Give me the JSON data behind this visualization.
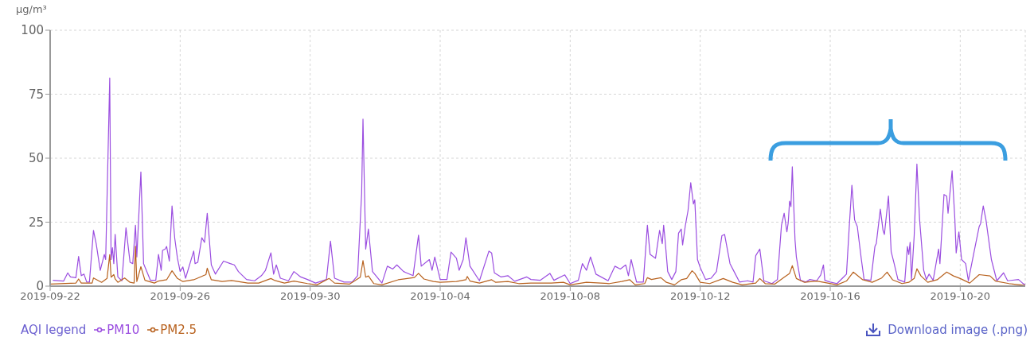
{
  "chart_data": {
    "type": "line",
    "ylabel": "µg/m³",
    "legend_title": "AQI legend",
    "legend": "bottom left",
    "grid": true,
    "line_style": "solid",
    "xlim": [
      "2019-09-22",
      "2019-10-22"
    ],
    "xticks": [
      "2019-09-22",
      "2019-09-26",
      "2019-09-30",
      "2019-10-04",
      "2019-10-08",
      "2019-10-12",
      "2019-10-16",
      "2019-10-20"
    ],
    "ylim": [
      0,
      100
    ],
    "yticks": [
      0,
      25,
      50,
      75,
      100
    ],
    "annotations": [
      "Download image (.png)"
    ],
    "series": [
      {
        "name": "PM10",
        "color": "#9b4ee0",
        "x": [
          "2019-09-22T02:00",
          "2019-09-22T10:00",
          "2019-09-22T13:00",
          "2019-09-22T15:00",
          "2019-09-22T19:00",
          "2019-09-22T21:00",
          "2019-09-22T23:00",
          "2019-09-23T01:00",
          "2019-09-23T03:00",
          "2019-09-23T05:00",
          "2019-09-23T08:00",
          "2019-09-23T10:00",
          "2019-09-23T13:00",
          "2019-09-23T16:00",
          "2019-09-23T17:00",
          "2019-09-23T20:00",
          "2019-09-23T21:00",
          "2019-09-23T22:00",
          "2019-09-23T23:00",
          "2019-09-24T00:00",
          "2019-09-24T02:00",
          "2019-09-24T05:00",
          "2019-09-24T08:00",
          "2019-09-24T11:00",
          "2019-09-24T13:00",
          "2019-09-24T15:00",
          "2019-09-24T16:00",
          "2019-09-24T19:00",
          "2019-09-24T21:00",
          "2019-09-25T02:00",
          "2019-09-25T06:00",
          "2019-09-25T08:00",
          "2019-09-25T10:00",
          "2019-09-25T11:00",
          "2019-09-25T13:00",
          "2019-09-25T14:00",
          "2019-09-25T16:00",
          "2019-09-25T18:00",
          "2019-09-25T20:00",
          "2019-09-25T22:00",
          "2019-09-26T00:00",
          "2019-09-26T02:00",
          "2019-09-26T04:00",
          "2019-09-26T10:00",
          "2019-09-26T11:00",
          "2019-09-26T13:00",
          "2019-09-26T16:00",
          "2019-09-26T18:00",
          "2019-09-26T20:00",
          "2019-09-26T23:00",
          "2019-09-27T02:00",
          "2019-09-27T08:00",
          "2019-09-27T13:00",
          "2019-09-27T16:00",
          "2019-09-27T19:00",
          "2019-09-28T01:00",
          "2019-09-28T07:00",
          "2019-09-28T12:00",
          "2019-09-28T15:00",
          "2019-09-28T19:00",
          "2019-09-28T21:00",
          "2019-09-28T23:00",
          "2019-09-29T02:00",
          "2019-09-29T08:00",
          "2019-09-29T12:00",
          "2019-09-29T17:00",
          "2019-09-29T22:00",
          "2019-09-30T04:00",
          "2019-09-30T12:00",
          "2019-09-30T15:00",
          "2019-09-30T18:00",
          "2019-10-01T01:00",
          "2019-10-01T07:00",
          "2019-10-01T11:00",
          "2019-10-01T14:00",
          "2019-10-01T15:00",
          "2019-10-01T17:00",
          "2019-10-01T19:00",
          "2019-10-01T22:00",
          "2019-10-02T05:00",
          "2019-10-02T09:00",
          "2019-10-02T13:00",
          "2019-10-02T16:00",
          "2019-10-02T21:00",
          "2019-10-03T04:00",
          "2019-10-03T08:00",
          "2019-10-03T10:00",
          "2019-10-03T16:00",
          "2019-10-03T18:00",
          "2019-10-03T20:00",
          "2019-10-04T00:00",
          "2019-10-04T05:00",
          "2019-10-04T08:00",
          "2019-10-04T12:00",
          "2019-10-04T14:00",
          "2019-10-04T17:00",
          "2019-10-04T19:00",
          "2019-10-04T22:00",
          "2019-10-05T05:00",
          "2019-10-05T12:00",
          "2019-10-05T14:00",
          "2019-10-05T16:00",
          "2019-10-05T21:00",
          "2019-10-06T02:00",
          "2019-10-06T07:00",
          "2019-10-06T16:00",
          "2019-10-06T19:00",
          "2019-10-07T02:00",
          "2019-10-07T09:00",
          "2019-10-07T12:00",
          "2019-10-07T20:00",
          "2019-10-08T00:00",
          "2019-10-08T06:00",
          "2019-10-08T09:00",
          "2019-10-08T12:00",
          "2019-10-08T15:00",
          "2019-10-08T19:00",
          "2019-10-09T04:00",
          "2019-10-09T09:00",
          "2019-10-09T13:00",
          "2019-10-09T17:00",
          "2019-10-09T19:00",
          "2019-10-09T21:00",
          "2019-10-10T01:00",
          "2019-10-10T06:00",
          "2019-10-10T09:00",
          "2019-10-10T11:00",
          "2019-10-10T15:00",
          "2019-10-10T18:00",
          "2019-10-10T20:00",
          "2019-10-10T21:00",
          "2019-10-10T22:00",
          "2019-10-11T00:00",
          "2019-10-11T03:00",
          "2019-10-11T06:00",
          "2019-10-11T08:00",
          "2019-10-11T10:00",
          "2019-10-11T11:00",
          "2019-10-11T13:00",
          "2019-10-11T15:00",
          "2019-10-11T17:00",
          "2019-10-11T19:00",
          "2019-10-11T20:00",
          "2019-10-11T22:00",
          "2019-10-12T00:00",
          "2019-10-12T04:00",
          "2019-10-12T08:00",
          "2019-10-12T12:00",
          "2019-10-12T16:00",
          "2019-10-12T18:00",
          "2019-10-12T22:00",
          "2019-10-13T01:00",
          "2019-10-13T05:00",
          "2019-10-13T11:00",
          "2019-10-13T15:00",
          "2019-10-13T17:00",
          "2019-10-13T20:00",
          "2019-10-13T23:00",
          "2019-10-14T05:00",
          "2019-10-14T09:00",
          "2019-10-14T12:00",
          "2019-10-14T14:00",
          "2019-10-14T16:00",
          "2019-10-14T17:00",
          "2019-10-14T18:00",
          "2019-10-14T19:00",
          "2019-10-14T20:00",
          "2019-10-14T22:00",
          "2019-10-14T23:00",
          "2019-10-15T02:00",
          "2019-10-15T06:00",
          "2019-10-15T09:00",
          "2019-10-15T14:00",
          "2019-10-15T17:00",
          "2019-10-15T19:00",
          "2019-10-15T20:00",
          "2019-10-16T00:00",
          "2019-10-16T05:00",
          "2019-10-16T09:00",
          "2019-10-16T12:00",
          "2019-10-16T14:00",
          "2019-10-16T16:00",
          "2019-10-16T18:00",
          "2019-10-16T20:00",
          "2019-10-16T23:00",
          "2019-10-17T01:00",
          "2019-10-17T06:00",
          "2019-10-17T09:00",
          "2019-10-17T10:00",
          "2019-10-17T13:00",
          "2019-10-17T15:00",
          "2019-10-17T16:00",
          "2019-10-17T19:00",
          "2019-10-17T21:00",
          "2019-10-17T23:00",
          "2019-10-18T02:00",
          "2019-10-18T07:00",
          "2019-10-18T09:00",
          "2019-10-18T10:00",
          "2019-10-18T11:00",
          "2019-10-18T12:00",
          "2019-10-18T14:00",
          "2019-10-18T16:00",
          "2019-10-18T18:00",
          "2019-10-18T21:00",
          "2019-10-18T23:00",
          "2019-10-19T01:00",
          "2019-10-19T04:00",
          "2019-10-19T08:00",
          "2019-10-19T09:00",
          "2019-10-19T12:00",
          "2019-10-19T14:00",
          "2019-10-19T15:00",
          "2019-10-19T18:00",
          "2019-10-19T20:00",
          "2019-10-19T21:00",
          "2019-10-19T23:00",
          "2019-10-20T01:00",
          "2019-10-20T04:00",
          "2019-10-20T06:00",
          "2019-10-20T11:00",
          "2019-10-20T14:00",
          "2019-10-20T15:00",
          "2019-10-20T17:00",
          "2019-10-20T19:00",
          "2019-10-20T23:00",
          "2019-10-21T03:00",
          "2019-10-21T08:00",
          "2019-10-21T11:00",
          "2019-10-21T19:00",
          "2019-10-21T22:00",
          "2019-10-22T00:00"
        ],
        "values": [
          2.3,
          2,
          5.2,
          3.6,
          3.3,
          11.6,
          4.1,
          4.7,
          1.6,
          1.6,
          21.8,
          16.6,
          6.2,
          12.4,
          10.4,
          81.3,
          10.4,
          15,
          8.8,
          20.2,
          3.6,
          2.1,
          22.8,
          9.3,
          8.8,
          23.8,
          11.4,
          44.6,
          8.8,
          2.3,
          2.3,
          12.4,
          6.2,
          14,
          14.5,
          15.5,
          9.8,
          31.3,
          18.7,
          10.9,
          5.7,
          7.5,
          3.1,
          13.7,
          8.8,
          9.3,
          18.9,
          17.1,
          28.5,
          8.3,
          4.7,
          9.8,
          8.8,
          8.3,
          5.7,
          2.6,
          2.1,
          4.1,
          6.2,
          13,
          4.7,
          8.3,
          3.1,
          2.1,
          5.7,
          3.6,
          2.6,
          1.2,
          2.6,
          17.6,
          3.1,
          1.6,
          1.6,
          4.1,
          36.3,
          65.3,
          14.5,
          22.3,
          5.7,
          1.2,
          7.8,
          6.7,
          8.3,
          5.7,
          4.1,
          19.9,
          7.8,
          10.4,
          6.2,
          11.4,
          2.6,
          2.6,
          13.3,
          10.9,
          6.2,
          10.4,
          18.9,
          7.8,
          2.1,
          13.7,
          13,
          5.2,
          3.6,
          4.1,
          1.9,
          3.6,
          2.6,
          2.3,
          5,
          2.3,
          4.4,
          1,
          2.3,
          8.8,
          6.2,
          11.4,
          4.7,
          2.1,
          7.8,
          6.7,
          8.3,
          4.1,
          10.4,
          1.6,
          1.6,
          23.8,
          12.4,
          10.9,
          21.8,
          16.6,
          23.8,
          18.4,
          5.7,
          2.6,
          5.7,
          20.7,
          22.3,
          16.1,
          23.6,
          29.5,
          40.4,
          32.1,
          33.7,
          10.4,
          7.3,
          2.6,
          3.1,
          5.7,
          19.7,
          20.2,
          8.8,
          5.7,
          1.6,
          2.1,
          1.6,
          11.9,
          14.5,
          2.1,
          1,
          2.6,
          23.8,
          28.5,
          21.2,
          24.9,
          33.2,
          31.1,
          46.6,
          18.1,
          11.4,
          2.3,
          1.6,
          2.6,
          2.1,
          4.4,
          8.3,
          2.3,
          1.6,
          1,
          3.1,
          4.7,
          22.8,
          39.4,
          25.9,
          23.3,
          10.4,
          2.6,
          2.3,
          15.5,
          16.6,
          30.1,
          21.8,
          20.2,
          35.2,
          13.5,
          9.3,
          2.6,
          1.6,
          15.5,
          12.4,
          17.1,
          2.6,
          19.7,
          47.7,
          25.9,
          6.2,
          2.6,
          4.7,
          2.3,
          14.5,
          8.8,
          35.8,
          35.2,
          28.5,
          45.1,
          26.4,
          13,
          21.2,
          10.4,
          8.8,
          2.1,
          15.5,
          23.3,
          24.4,
          31.3,
          25.9,
          10.4,
          2.1,
          5.2,
          2.1,
          2.6,
          1.2,
          0.5
        ]
      },
      {
        "name": "PM2.5",
        "color": "#b8621f",
        "x": [
          "2019-09-22T00:00",
          "2019-09-22T19:00",
          "2019-09-22T21:00",
          "2019-09-22T23:00",
          "2019-09-23T07:00",
          "2019-09-23T08:00",
          "2019-09-23T14:00",
          "2019-09-23T18:00",
          "2019-09-23T20:00",
          "2019-09-23T21:00",
          "2019-09-23T23:00",
          "2019-09-24T00:00",
          "2019-09-24T02:00",
          "2019-09-24T07:00",
          "2019-09-24T11:00",
          "2019-09-24T14:00",
          "2019-09-24T15:00",
          "2019-09-24T16:00",
          "2019-09-24T19:00",
          "2019-09-24T22:00",
          "2019-09-25T05:00",
          "2019-09-25T08:00",
          "2019-09-25T14:00",
          "2019-09-25T18:00",
          "2019-09-25T22:00",
          "2019-09-26T02:00",
          "2019-09-26T10:00",
          "2019-09-26T19:00",
          "2019-09-26T20:00",
          "2019-09-26T23:00",
          "2019-09-27T07:00",
          "2019-09-27T14:00",
          "2019-09-28T02:00",
          "2019-09-28T10:00",
          "2019-09-28T19:00",
          "2019-09-28T22:00",
          "2019-09-29T05:00",
          "2019-09-29T12:00",
          "2019-09-29T22:00",
          "2019-09-30T05:00",
          "2019-09-30T14:00",
          "2019-09-30T18:00",
          "2019-10-01T05:00",
          "2019-10-01T13:00",
          "2019-10-01T15:00",
          "2019-10-01T17:00",
          "2019-10-01T19:00",
          "2019-10-01T23:00",
          "2019-10-02T05:00",
          "2019-10-02T17:00",
          "2019-10-03T05:00",
          "2019-10-03T08:00",
          "2019-10-03T12:00",
          "2019-10-03T19:00",
          "2019-10-04T00:00",
          "2019-10-04T12:00",
          "2019-10-04T19:00",
          "2019-10-04T20:00",
          "2019-10-04T22:00",
          "2019-10-05T05:00",
          "2019-10-05T14:00",
          "2019-10-05T17:00",
          "2019-10-06T02:00",
          "2019-10-06T10:00",
          "2019-10-06T19:00",
          "2019-10-07T10:00",
          "2019-10-07T19:00",
          "2019-10-08T00:00",
          "2019-10-08T12:00",
          "2019-10-09T05:00",
          "2019-10-09T14:00",
          "2019-10-09T20:00",
          "2019-10-10T00:00",
          "2019-10-10T07:00",
          "2019-10-10T09:00",
          "2019-10-10T12:00",
          "2019-10-10T19:00",
          "2019-10-10T23:00",
          "2019-10-11T05:00",
          "2019-10-11T10:00",
          "2019-10-11T14:00",
          "2019-10-11T18:00",
          "2019-10-11T20:00",
          "2019-10-12T00:00",
          "2019-10-12T07:00",
          "2019-10-12T17:00",
          "2019-10-13T00:00",
          "2019-10-13T07:00",
          "2019-10-13T17:00",
          "2019-10-13T20:00",
          "2019-10-14T00:00",
          "2019-10-14T07:00",
          "2019-10-14T14:00",
          "2019-10-14T18:00",
          "2019-10-14T20:00",
          "2019-10-14T23:00",
          "2019-10-15T05:00",
          "2019-10-15T14:00",
          "2019-10-15T19:00",
          "2019-10-16T05:00",
          "2019-10-16T12:00",
          "2019-10-16T17:00",
          "2019-10-17T00:00",
          "2019-10-17T07:00",
          "2019-10-17T14:00",
          "2019-10-17T18:00",
          "2019-10-17T22:00",
          "2019-10-18T05:00",
          "2019-10-18T10:00",
          "2019-10-18T14:00",
          "2019-10-18T16:00",
          "2019-10-18T19:00",
          "2019-10-19T00:00",
          "2019-10-19T07:00",
          "2019-10-19T14:00",
          "2019-10-19T19:00",
          "2019-10-20T00:00",
          "2019-10-20T07:00",
          "2019-10-20T14:00",
          "2019-10-20T22:00",
          "2019-10-21T02:00",
          "2019-10-21T12:00",
          "2019-10-22T00:00"
        ],
        "values": [
          0.8,
          1.2,
          2.8,
          1.2,
          1.2,
          3.2,
          1.5,
          3,
          12.3,
          3.5,
          4.5,
          2.8,
          1.5,
          3.2,
          1.5,
          1.2,
          15.6,
          1.8,
          7.6,
          2.3,
          1.2,
          2,
          2.5,
          6,
          3,
          1.8,
          2.5,
          4.5,
          7,
          2.5,
          1.8,
          2.2,
          1.2,
          1.2,
          3,
          2.2,
          1.2,
          2,
          1,
          0.5,
          3,
          1.2,
          0.8,
          3.5,
          10,
          3.5,
          4,
          1,
          0.5,
          2.5,
          3.4,
          5,
          2.8,
          1.8,
          1.5,
          1.8,
          2.5,
          3.8,
          2,
          1.2,
          2.5,
          1.5,
          1.8,
          1,
          1.2,
          1.2,
          1.5,
          0.5,
          1.5,
          1,
          1.8,
          2.5,
          0.5,
          1,
          3.3,
          2.6,
          3.3,
          1.5,
          0.5,
          2.5,
          3,
          6,
          5,
          1.5,
          1,
          3,
          1.5,
          0.5,
          1.2,
          3,
          1,
          0.8,
          3.5,
          5,
          8,
          3,
          1.5,
          2,
          1.5,
          0.5,
          2,
          5.5,
          2.5,
          1.5,
          3.2,
          5.5,
          2.5,
          1,
          1.5,
          3,
          6.8,
          4,
          1.5,
          2.5,
          5.5,
          4,
          3,
          1.2,
          4.5,
          4,
          2,
          1,
          0.3
        ]
      }
    ]
  }
}
